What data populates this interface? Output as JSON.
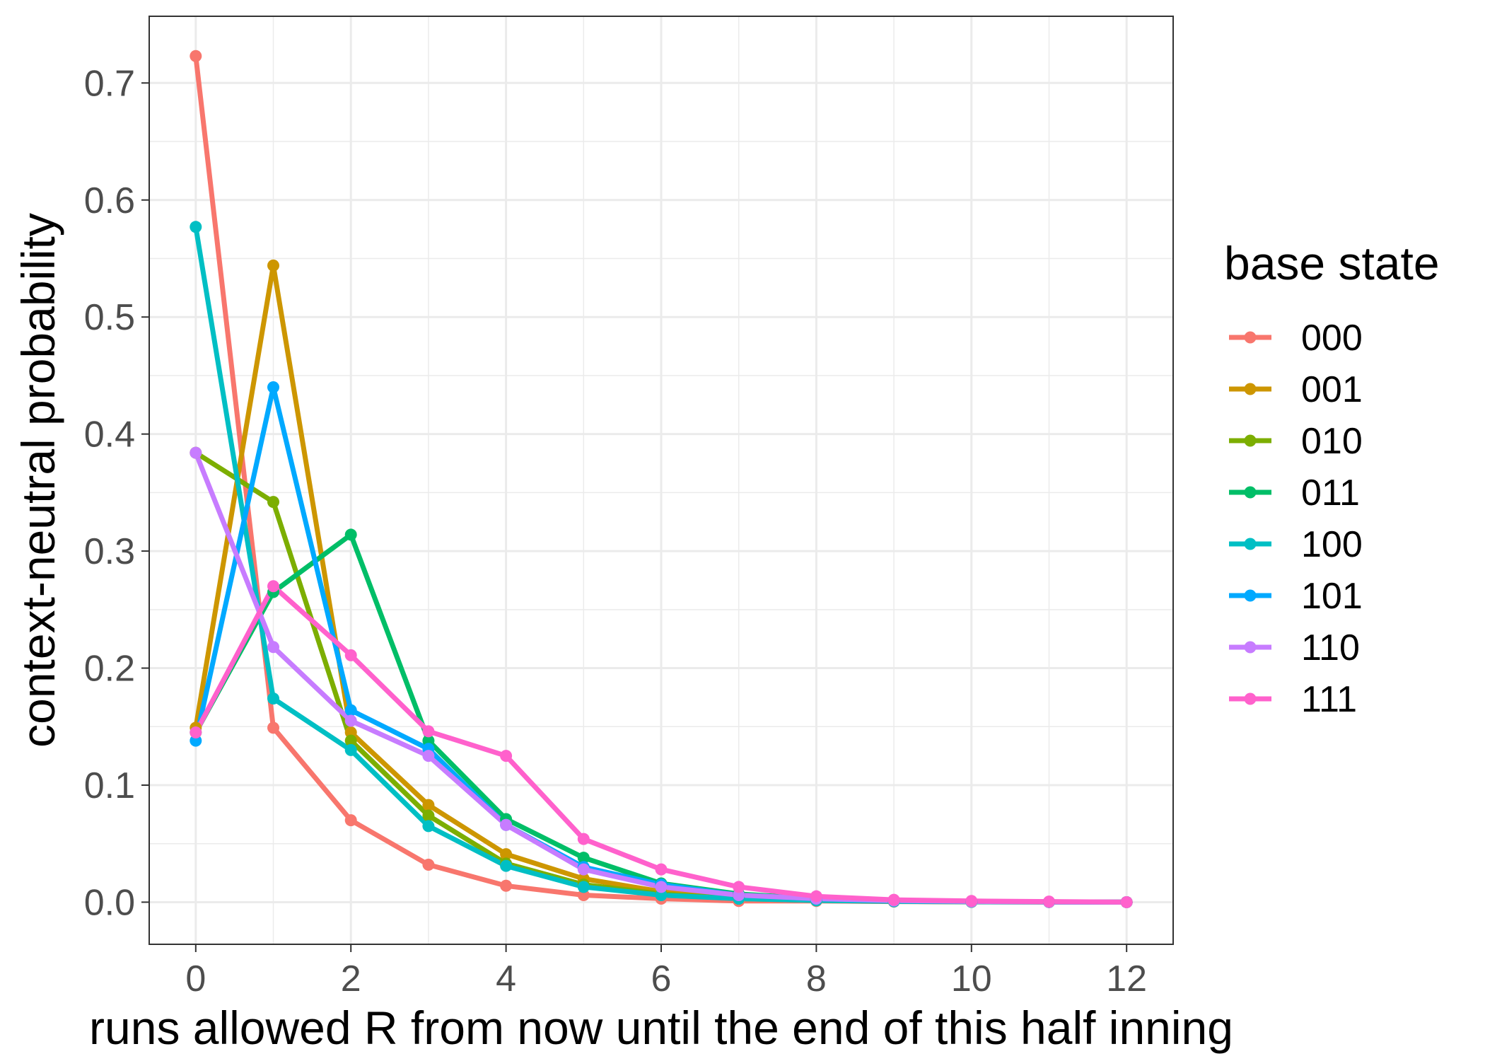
{
  "chart_data": {
    "type": "line",
    "xlabel": "runs allowed R from now until the end of this half inning",
    "ylabel": "context-neutral probability",
    "xlim": [
      -0.6,
      12.6
    ],
    "ylim": [
      -0.036,
      0.757
    ],
    "xticks": [
      0,
      2,
      4,
      6,
      8,
      10,
      12
    ],
    "yticks": [
      0.0,
      0.1,
      0.2,
      0.3,
      0.4,
      0.5,
      0.6,
      0.7
    ],
    "ytick_labels": [
      "0.0",
      "0.1",
      "0.2",
      "0.3",
      "0.4",
      "0.5",
      "0.6",
      "0.7"
    ],
    "grid": true,
    "legend": {
      "title": "base state",
      "position": "right"
    },
    "x": [
      0,
      1,
      2,
      3,
      4,
      5,
      6,
      7,
      8,
      9,
      10,
      11,
      12
    ],
    "series": [
      {
        "name": "000",
        "color": "#F8766D",
        "values": [
          0.723,
          0.149,
          0.07,
          0.032,
          0.014,
          0.006,
          0.003,
          0.001,
          0.001,
          0.0005,
          0.0002,
          0.0001,
          0.0
        ]
      },
      {
        "name": "001",
        "color": "#CD9600",
        "values": [
          0.149,
          0.544,
          0.145,
          0.083,
          0.041,
          0.02,
          0.009,
          0.004,
          0.002,
          0.001,
          0.0005,
          0.0002,
          0.0
        ]
      },
      {
        "name": "010",
        "color": "#7CAE00",
        "values": [
          0.384,
          0.342,
          0.138,
          0.074,
          0.033,
          0.015,
          0.007,
          0.003,
          0.0015,
          0.0007,
          0.0003,
          0.0001,
          0.0
        ]
      },
      {
        "name": "011",
        "color": "#00BE67",
        "values": [
          0.145,
          0.265,
          0.314,
          0.138,
          0.071,
          0.038,
          0.016,
          0.007,
          0.003,
          0.0015,
          0.0007,
          0.0003,
          0.0
        ]
      },
      {
        "name": "100",
        "color": "#00BFC4",
        "values": [
          0.577,
          0.174,
          0.13,
          0.065,
          0.031,
          0.013,
          0.006,
          0.003,
          0.0015,
          0.0007,
          0.0003,
          0.0001,
          0.0
        ]
      },
      {
        "name": "101",
        "color": "#00A9FF",
        "values": [
          0.138,
          0.44,
          0.164,
          0.131,
          0.066,
          0.03,
          0.015,
          0.006,
          0.003,
          0.0013,
          0.0006,
          0.0002,
          0.0
        ]
      },
      {
        "name": "110",
        "color": "#C77CFF",
        "values": [
          0.384,
          0.218,
          0.155,
          0.125,
          0.066,
          0.028,
          0.013,
          0.006,
          0.003,
          0.0014,
          0.0006,
          0.0002,
          0.0
        ]
      },
      {
        "name": "111",
        "color": "#FF61CC",
        "values": [
          0.145,
          0.27,
          0.211,
          0.146,
          0.125,
          0.054,
          0.028,
          0.013,
          0.005,
          0.002,
          0.001,
          0.0005,
          0.0
        ]
      }
    ]
  }
}
